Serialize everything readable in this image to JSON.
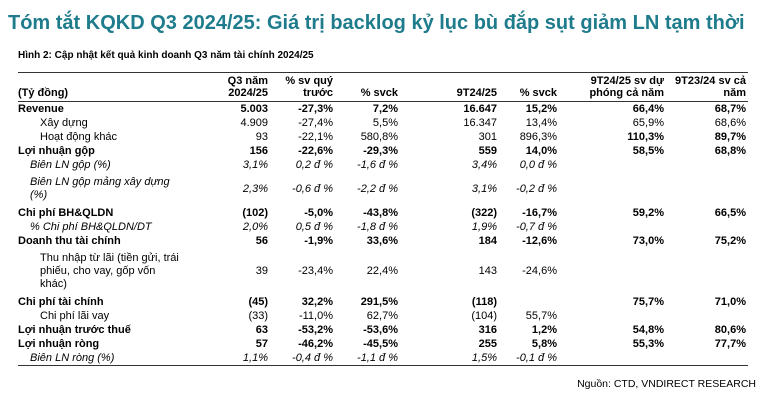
{
  "header": {
    "title": "Tóm tắt KQKD Q3 2024/25: Giá trị backlog kỷ lục bù đắp sụt giảm LN tạm thời",
    "subtitle": "Hình 2: Cập nhật kết quả kinh doanh Q3 năm tài chính 2024/25"
  },
  "table": {
    "columns": [
      "(Tỷ đồng)",
      "Q3 năm 2024/25",
      "% sv quý trước",
      "% svck",
      "9T24/25",
      "% svck",
      "9T24/25 sv dự phóng cả năm",
      "9T23/24 sv cả năm"
    ],
    "rows": [
      [
        "Revenue",
        "5.003",
        "-27,3%",
        "7,2%",
        "16.647",
        "15,2%",
        "66,4%",
        "68,7%"
      ],
      [
        "Xây dựng",
        "4.909",
        "-27,4%",
        "5,5%",
        "16.347",
        "13,4%",
        "65,9%",
        "68,6%"
      ],
      [
        "Hoạt động khác",
        "93",
        "-22,1%",
        "580,8%",
        "301",
        "896,3%",
        "110,3%",
        "89,7%"
      ],
      [
        "Lợi nhuận gộp",
        "156",
        "-22,6%",
        "-29,3%",
        "559",
        "14,0%",
        "58,5%",
        "68,8%"
      ],
      [
        "Biên LN gộp (%)",
        "3,1%",
        "0,2 đ %",
        "-1,6 đ %",
        "3,4%",
        "0,0 đ %",
        null,
        null
      ],
      [
        "Biên LN gộp mảng xây dựng (%)",
        "2,3%",
        "-0,6 đ %",
        "-2,2 đ %",
        "3,1%",
        "-0,2 đ %",
        null,
        null
      ],
      [
        "Chi phí BH&QLDN",
        "(102)",
        "-5,0%",
        "-43,8%",
        "(322)",
        "-16,7%",
        "59,2%",
        "66,5%"
      ],
      [
        "% Chi phí BH&QLDN/DT",
        "2,0%",
        "0,5 đ %",
        "-1,8 đ %",
        "1,9%",
        "-0,7 đ %",
        null,
        null
      ],
      [
        "Doanh thu tài chính",
        "56",
        "-1,9%",
        "33,6%",
        "184",
        "-12,6%",
        "73,0%",
        "75,2%"
      ],
      [
        "Thu nhập từ lãi (tiền gửi, trái phiếu, cho vay, gốp vốn khác)",
        "39",
        "-23,4%",
        "22,4%",
        "143",
        "-24,6%",
        null,
        null
      ],
      [
        "Chi phí tài chính",
        "(45)",
        "32,2%",
        "291,5%",
        "(118)",
        null,
        "75,7%",
        "71,0%"
      ],
      [
        "Chi phí lãi vay",
        "(33)",
        "-11,0%",
        "62,7%",
        "(104)",
        "55,7%",
        null,
        null
      ],
      [
        "Lợi nhuận trước thuế",
        "63",
        "-53,2%",
        "-53,6%",
        "316",
        "1,2%",
        "54,8%",
        "80,6%"
      ],
      [
        "Lợi nhuận ròng",
        "57",
        "-46,2%",
        "-45,5%",
        "255",
        "5,8%",
        "55,3%",
        "77,7%"
      ],
      [
        "Biên LN ròng (%)",
        "1,1%",
        "-0,4 đ %",
        "-1,1 đ %",
        "1,5%",
        "-0,1 đ %",
        null,
        null
      ]
    ]
  },
  "footer": {
    "source": "Nguồn: CTD, VNDIRECT RESEARCH"
  }
}
